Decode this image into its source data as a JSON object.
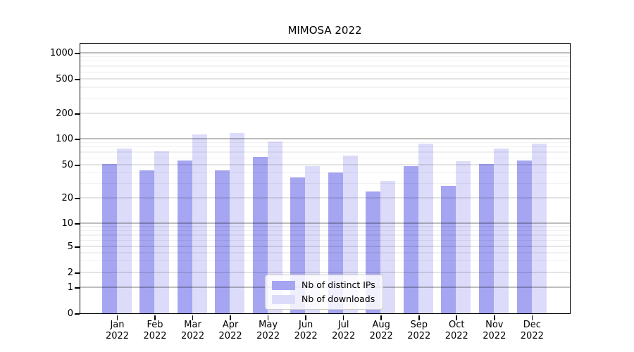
{
  "chart_data": {
    "type": "bar",
    "title": "MIMOSA 2022",
    "categories": [
      "Jan",
      "Feb",
      "Mar",
      "Apr",
      "May",
      "Jun",
      "Jul",
      "Aug",
      "Sep",
      "Oct",
      "Nov",
      "Dec"
    ],
    "category_year": "2022",
    "series": [
      {
        "name": "Nb of distinct IPs",
        "color": "#a5a5f2",
        "values": [
          51,
          43,
          56,
          43,
          61,
          35,
          40,
          24,
          48,
          28,
          51,
          56
        ]
      },
      {
        "name": "Nb of downloads",
        "color": "#dcdcfa",
        "values": [
          77,
          71,
          113,
          116,
          93,
          48,
          64,
          32,
          88,
          55,
          77,
          88
        ]
      }
    ],
    "xlabel": "",
    "ylabel": "",
    "yscale": "symlog",
    "yticks": [
      0,
      1,
      2,
      5,
      10,
      20,
      50,
      100,
      200,
      500,
      1000
    ],
    "ylim": [
      0,
      1270
    ],
    "grid": "on",
    "legend_position": "lower center"
  }
}
